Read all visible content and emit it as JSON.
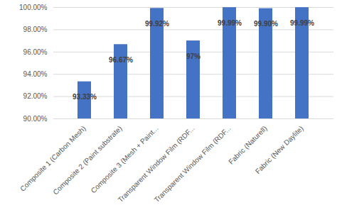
{
  "chart_data": {
    "type": "bar",
    "categories": [
      "Composite 1 (Carbon Mesh)",
      "Composite 2 (Paint substrate)",
      "Composite 3 (Mesh + Paint...",
      "Transparent Window Film (RDF...",
      "Transparent Window Film (RDF...",
      "Fabric (Naturell)",
      "Fabric (New Daylite)"
    ],
    "values": [
      93.33,
      96.67,
      99.92,
      97,
      99.99,
      99.9,
      99.99
    ],
    "value_labels": [
      "93.33%",
      "96.67%",
      "99.92%",
      "97%",
      "99.99%",
      "99.90%",
      "99.99%"
    ],
    "data_labels": true,
    "color": "#4472c4",
    "ylim": [
      90,
      100
    ],
    "yticks": [
      {
        "value": 90,
        "label": "90.00%"
      },
      {
        "value": 92,
        "label": "92.00%"
      },
      {
        "value": 94,
        "label": "94.00%"
      },
      {
        "value": 96,
        "label": "96.00%"
      },
      {
        "value": 98,
        "label": "98.00%"
      },
      {
        "value": 100,
        "label": "100.00%"
      }
    ],
    "grid": true
  }
}
